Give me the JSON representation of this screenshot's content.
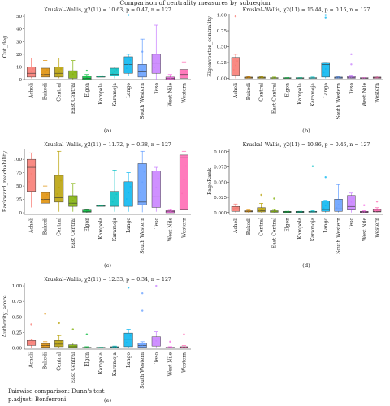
{
  "figure_title": "Comparison of centrality measures by subregion",
  "footnote": {
    "line1": "Pairwise comparison: Dunn's test",
    "line2": "p.adjust: Bonferroni"
  },
  "colors": [
    "#f8766d",
    "#de8c00",
    "#b79f00",
    "#7cae00",
    "#00ba38",
    "#00c08b",
    "#00bfc4",
    "#00b4f0",
    "#619cff",
    "#c77cff",
    "#f564e3",
    "#ff64b0"
  ],
  "chart_data": [
    {
      "type": "box",
      "panel_label": "(a)",
      "subtitle": "Kruskal–Wallis, χ2(11) = 10.63, p = 0.47, n = 127",
      "ylabel": "Out_deg",
      "categories": [
        "Acholi",
        "Bukedi",
        "Central",
        "East Central",
        "Elgon",
        "Kampala",
        "Karamoja",
        "Lango",
        "South Western",
        "Teso",
        "West Nile",
        "Western"
      ],
      "ylim": [
        0,
        52
      ],
      "yticks": [
        0,
        10,
        20,
        30,
        40,
        50
      ],
      "boxes": [
        {
          "min": 1,
          "q1": 2,
          "median": 5,
          "q3": 10,
          "max": 17,
          "outliers": []
        },
        {
          "min": 1,
          "q1": 2,
          "median": 4,
          "q3": 9,
          "max": 15,
          "outliers": []
        },
        {
          "min": 1,
          "q1": 2,
          "median": 5,
          "q3": 10,
          "max": 17,
          "outliers": []
        },
        {
          "min": 0,
          "q1": 1,
          "median": 3,
          "q3": 7,
          "max": 15,
          "outliers": []
        },
        {
          "min": 0,
          "q1": 0,
          "median": 1,
          "q3": 3,
          "max": 4,
          "outliers": [
            7
          ]
        },
        {
          "min": 2,
          "q1": 2,
          "median": 2,
          "q3": 3,
          "max": 3,
          "outliers": []
        },
        {
          "min": 1,
          "q1": 3,
          "median": 4,
          "q3": 9,
          "max": 10,
          "outliers": []
        },
        {
          "min": 3,
          "q1": 5,
          "median": 12,
          "q3": 18,
          "max": 20,
          "outliers": [
            51
          ]
        },
        {
          "min": 0,
          "q1": 2,
          "median": 6,
          "q3": 12,
          "max": 32,
          "outliers": [
            22
          ]
        },
        {
          "min": 0,
          "q1": 5,
          "median": 13,
          "q3": 20,
          "max": 43,
          "outliers": []
        },
        {
          "min": 0,
          "q1": 0,
          "median": 1,
          "q3": 2,
          "max": 4,
          "outliers": []
        },
        {
          "min": 0,
          "q1": 1,
          "median": 4,
          "q3": 8,
          "max": 14,
          "outliers": []
        }
      ]
    },
    {
      "type": "box",
      "panel_label": "(b)",
      "subtitle": "Kruskal–Wallis, χ2(11) = 15.44, p = 0.16, n = 127",
      "ylabel": "Eigenvector_centrality",
      "categories": [
        "Acholi",
        "Bukedi",
        "Central",
        "East Central",
        "Elgon",
        "Kampala",
        "Karamoja",
        "Lango",
        "South Western",
        "Teso",
        "West Nile",
        "Western"
      ],
      "ylim": [
        -0.02,
        1.02
      ],
      "yticks": [
        0.0,
        0.25,
        0.5,
        0.75,
        1.0
      ],
      "yticklabels": [
        "0.00",
        "0.25",
        "0.50",
        "0.75",
        "1.00"
      ],
      "boxes": [
        {
          "min": 0.0,
          "q1": 0.05,
          "median": 0.18,
          "q3": 0.33,
          "max": 0.38,
          "outliers": [
            0.98
          ]
        },
        {
          "min": 0.0,
          "q1": 0.0,
          "median": 0.01,
          "q3": 0.02,
          "max": 0.03,
          "outliers": []
        },
        {
          "min": 0.0,
          "q1": 0.0,
          "median": 0.01,
          "q3": 0.02,
          "max": 0.03,
          "outliers": []
        },
        {
          "min": 0.0,
          "q1": 0.0,
          "median": 0.005,
          "q3": 0.01,
          "max": 0.02,
          "outliers": []
        },
        {
          "min": 0.0,
          "q1": 0.0,
          "median": 0.0,
          "q3": 0.01,
          "max": 0.01,
          "outliers": []
        },
        {
          "min": 0.0,
          "q1": 0.0,
          "median": 0.0,
          "q3": 0.01,
          "max": 0.01,
          "outliers": []
        },
        {
          "min": 0.0,
          "q1": 0.0,
          "median": 0.005,
          "q3": 0.01,
          "max": 0.02,
          "outliers": []
        },
        {
          "min": 0.0,
          "q1": 0.02,
          "median": 0.22,
          "q3": 0.25,
          "max": 0.25,
          "outliers": [
            0.96,
            1.0
          ]
        },
        {
          "min": 0.0,
          "q1": 0.0,
          "median": 0.01,
          "q3": 0.02,
          "max": 0.03,
          "outliers": []
        },
        {
          "min": 0.0,
          "q1": 0.0,
          "median": 0.01,
          "q3": 0.03,
          "max": 0.05,
          "outliers": [
            0.38,
            0.22
          ]
        },
        {
          "min": 0.0,
          "q1": 0.0,
          "median": 0.0,
          "q3": 0.01,
          "max": 0.01,
          "outliers": []
        },
        {
          "min": 0.0,
          "q1": 0.0,
          "median": 0.01,
          "q3": 0.02,
          "max": 0.04,
          "outliers": []
        }
      ]
    },
    {
      "type": "box",
      "panel_label": "(c)",
      "subtitle": "Kruskal–Wallis, χ2(11) = 11.72, p = 0.38, n = 127",
      "ylabel": "Backward_reachability",
      "categories": [
        "Acholi",
        "Bukedi",
        "Central",
        "East Central",
        "Elgon",
        "Kampala",
        "Karamoja",
        "Lango",
        "South Western",
        "Teso",
        "West Nile",
        "Western"
      ],
      "ylim": [
        -3,
        120
      ],
      "yticks": [
        0,
        25,
        50,
        75,
        100
      ],
      "boxes": [
        {
          "min": 10,
          "q1": 40,
          "median": 85,
          "q3": 100,
          "max": 112,
          "outliers": []
        },
        {
          "min": 15,
          "q1": 18,
          "median": 25,
          "q3": 38,
          "max": 50,
          "outliers": []
        },
        {
          "min": 2,
          "q1": 20,
          "median": 28,
          "q3": 70,
          "max": 115,
          "outliers": []
        },
        {
          "min": 2,
          "q1": 12,
          "median": 18,
          "q3": 32,
          "max": 55,
          "outliers": []
        },
        {
          "min": 0,
          "q1": 1,
          "median": 2,
          "q3": 5,
          "max": 6,
          "outliers": []
        },
        {
          "min": 12,
          "q1": 12,
          "median": 13,
          "q3": 14,
          "max": 14,
          "outliers": []
        },
        {
          "min": 2,
          "q1": 12,
          "median": 14,
          "q3": 40,
          "max": 80,
          "outliers": []
        },
        {
          "min": 2,
          "q1": 12,
          "median": 22,
          "q3": 58,
          "max": 75,
          "outliers": []
        },
        {
          "min": 1,
          "q1": 15,
          "median": 20,
          "q3": 92,
          "max": 115,
          "outliers": []
        },
        {
          "min": 2,
          "q1": 10,
          "median": 30,
          "q3": 78,
          "max": 85,
          "outliers": []
        },
        {
          "min": 0,
          "q1": 0,
          "median": 2,
          "q3": 4,
          "max": 6,
          "outliers": []
        },
        {
          "min": 0,
          "q1": 5,
          "median": 103,
          "q3": 108,
          "max": 115,
          "outliers": []
        }
      ]
    },
    {
      "type": "box",
      "panel_label": "(d)",
      "subtitle": "Kruskal–Wallis, χ2(11) = 10.86, p = 0.46, n = 127",
      "ylabel": "PageRank",
      "categories": [
        "Acholi",
        "Bukedi",
        "Central",
        "East Central",
        "Elgon",
        "Kampala",
        "Karamoja",
        "Lango",
        "South Western",
        "Teso",
        "West Nile",
        "Western"
      ],
      "ylim": [
        -0.003,
        0.105
      ],
      "yticks": [
        0.0,
        0.025,
        0.05,
        0.075,
        0.1
      ],
      "yticklabels": [
        "0.000",
        "0.025",
        "0.050",
        "0.075",
        "0.100"
      ],
      "boxes": [
        {
          "min": 0.0,
          "q1": 0.002,
          "median": 0.006,
          "q3": 0.01,
          "max": 0.014,
          "outliers": []
        },
        {
          "min": 0.0,
          "q1": 0.001,
          "median": 0.002,
          "q3": 0.003,
          "max": 0.004,
          "outliers": []
        },
        {
          "min": 0.0,
          "q1": 0.001,
          "median": 0.003,
          "q3": 0.008,
          "max": 0.015,
          "outliers": [
            0.029
          ]
        },
        {
          "min": 0.0,
          "q1": 0.0005,
          "median": 0.001,
          "q3": 0.003,
          "max": 0.005,
          "outliers": [
            0.023
          ]
        },
        {
          "min": 0.0,
          "q1": 0.0,
          "median": 0.001,
          "q3": 0.002,
          "max": 0.002,
          "outliers": []
        },
        {
          "min": 0.0,
          "q1": 0.0,
          "median": 0.001,
          "q3": 0.002,
          "max": 0.002,
          "outliers": []
        },
        {
          "min": 0.0,
          "q1": 0.0005,
          "median": 0.001,
          "q3": 0.002,
          "max": 0.003,
          "outliers": [
            0.076
          ]
        },
        {
          "min": 0.0,
          "q1": 0.002,
          "median": 0.005,
          "q3": 0.019,
          "max": 0.02,
          "outliers": [
            0.058
          ]
        },
        {
          "min": 0.0,
          "q1": 0.002,
          "median": 0.006,
          "q3": 0.022,
          "max": 0.046,
          "outliers": []
        },
        {
          "min": 0.0,
          "q1": 0.004,
          "median": 0.01,
          "q3": 0.028,
          "max": 0.032,
          "outliers": []
        },
        {
          "min": 0.0,
          "q1": 0.0,
          "median": 0.001,
          "q3": 0.002,
          "max": 0.003,
          "outliers": [
            0.012
          ]
        },
        {
          "min": 0.0,
          "q1": 0.001,
          "median": 0.002,
          "q3": 0.005,
          "max": 0.008,
          "outliers": [
            0.018
          ]
        }
      ]
    },
    {
      "type": "box",
      "panel_label": "(e)",
      "subtitle": "Kruskal–Wallis, χ2(11) = 12.33, p = 0.34, n = 127",
      "ylabel": "Authority_score",
      "categories": [
        "Acholi",
        "Bukedi",
        "Central",
        "East Central",
        "Elgon",
        "Kampala",
        "Karamoja",
        "Lango",
        "South Western",
        "Teso",
        "West Nile",
        "Western"
      ],
      "ylim": [
        -0.02,
        1.04
      ],
      "yticks": [
        0.0,
        0.25,
        0.5,
        0.75,
        1.0
      ],
      "yticklabels": [
        "0.00",
        "0.25",
        "0.50",
        "0.75",
        "1.00"
      ],
      "boxes": [
        {
          "min": 0.0,
          "q1": 0.04,
          "median": 0.08,
          "q3": 0.12,
          "max": 0.14,
          "outliers": [
            0.38
          ]
        },
        {
          "min": 0.0,
          "q1": 0.01,
          "median": 0.04,
          "q3": 0.07,
          "max": 0.1,
          "outliers": [
            0.55
          ]
        },
        {
          "min": 0.0,
          "q1": 0.02,
          "median": 0.06,
          "q3": 0.12,
          "max": 0.2,
          "outliers": [
            0.4
          ]
        },
        {
          "min": 0.0,
          "q1": 0.005,
          "median": 0.02,
          "q3": 0.05,
          "max": 0.08,
          "outliers": [
            0.3
          ]
        },
        {
          "min": 0.0,
          "q1": 0.0,
          "median": 0.005,
          "q3": 0.01,
          "max": 0.02,
          "outliers": [
            0.22
          ]
        },
        {
          "min": 0.0,
          "q1": 0.0,
          "median": 0.005,
          "q3": 0.01,
          "max": 0.01,
          "outliers": []
        },
        {
          "min": 0.0,
          "q1": 0.005,
          "median": 0.01,
          "q3": 0.02,
          "max": 0.03,
          "outliers": []
        },
        {
          "min": 0.0,
          "q1": 0.02,
          "median": 0.14,
          "q3": 0.24,
          "max": 0.3,
          "outliers": [
            0.97
          ]
        },
        {
          "min": 0.0,
          "q1": 0.01,
          "median": 0.04,
          "q3": 0.08,
          "max": 0.1,
          "outliers": [
            0.6,
            0.88
          ]
        },
        {
          "min": 0.0,
          "q1": 0.03,
          "median": 0.08,
          "q3": 0.18,
          "max": 0.26,
          "outliers": [
            1.0
          ]
        },
        {
          "min": 0.0,
          "q1": 0.0,
          "median": 0.005,
          "q3": 0.01,
          "max": 0.02,
          "outliers": [
            0.1
          ]
        },
        {
          "min": 0.0,
          "q1": 0.005,
          "median": 0.01,
          "q3": 0.02,
          "max": 0.04,
          "outliers": [
            0.22
          ]
        }
      ]
    }
  ]
}
